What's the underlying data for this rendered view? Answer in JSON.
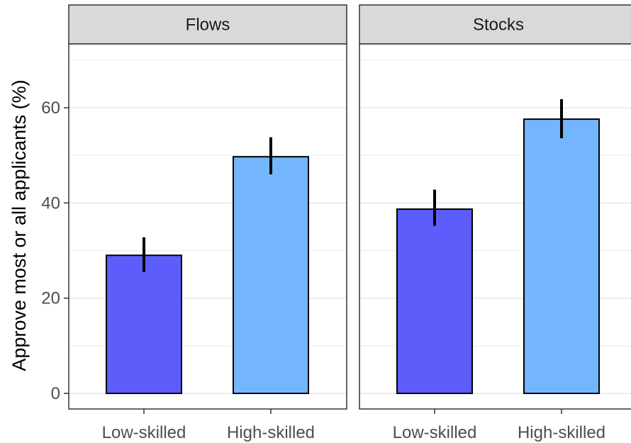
{
  "chart_data": {
    "type": "bar",
    "ylabel": "Approve most or all applicants (%)",
    "xlabel": "",
    "ylim": [
      0,
      72
    ],
    "yticks": [
      0,
      20,
      40,
      60
    ],
    "grid": true,
    "colors": {
      "low": "#5d5dfc",
      "high": "#74b6fd",
      "strip_fill": "#d9d9d9",
      "grid": "#ebebeb"
    },
    "categories": [
      "Low-skilled",
      "High-skilled"
    ],
    "panels": [
      {
        "name": "Flows",
        "values": [
          29,
          49.7
        ],
        "ci_low": [
          25.5,
          46
        ],
        "ci_high": [
          32.8,
          53.8
        ]
      },
      {
        "name": "Stocks",
        "values": [
          38.7,
          57.6
        ],
        "ci_low": [
          35.2,
          53.6
        ],
        "ci_high": [
          42.8,
          61.8
        ]
      }
    ]
  }
}
